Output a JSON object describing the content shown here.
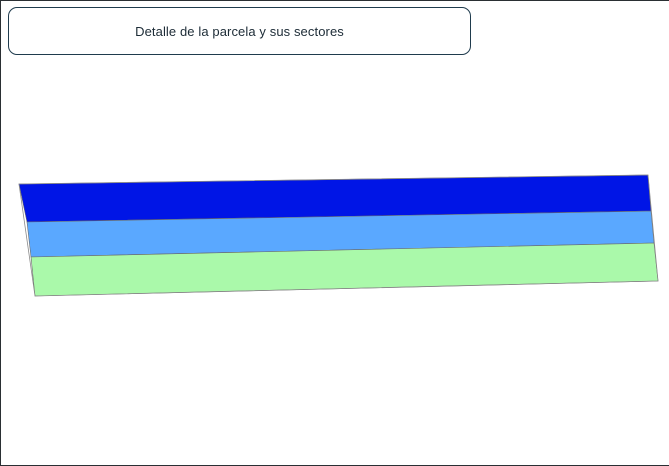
{
  "header": {
    "title": "Detalle de la parcela y sus sectores"
  },
  "parcel": {
    "sectors": [
      {
        "id": "sector-1",
        "color": "#0015e6"
      },
      {
        "id": "sector-2",
        "color": "#5aa8ff"
      },
      {
        "id": "sector-3",
        "color": "#aaf9aa"
      }
    ],
    "outline_color": "#8a8a8a"
  }
}
